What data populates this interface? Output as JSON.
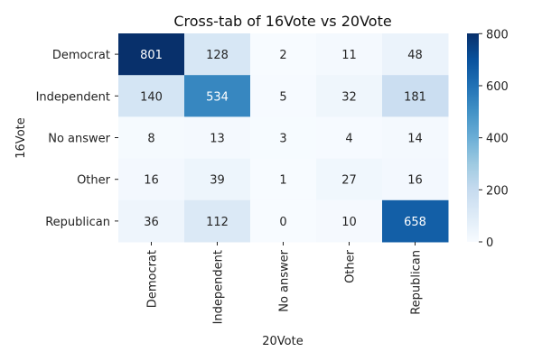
{
  "chart_data": {
    "type": "heatmap",
    "title": "Cross-tab of 16Vote vs 20Vote",
    "xlabel": "20Vote",
    "ylabel": "16Vote",
    "x_categories": [
      "Democrat",
      "Independent",
      "No answer",
      "Other",
      "Republican"
    ],
    "y_categories": [
      "Democrat",
      "Independent",
      "No answer",
      "Other",
      "Republican"
    ],
    "values": [
      [
        801,
        128,
        2,
        11,
        48
      ],
      [
        140,
        534,
        5,
        32,
        181
      ],
      [
        8,
        13,
        3,
        4,
        14
      ],
      [
        16,
        39,
        1,
        27,
        16
      ],
      [
        36,
        112,
        0,
        10,
        658
      ]
    ],
    "colorbar": {
      "range": [
        0,
        801
      ],
      "ticks": [
        0,
        200,
        400,
        600,
        800
      ]
    },
    "colormap": "Blues"
  }
}
